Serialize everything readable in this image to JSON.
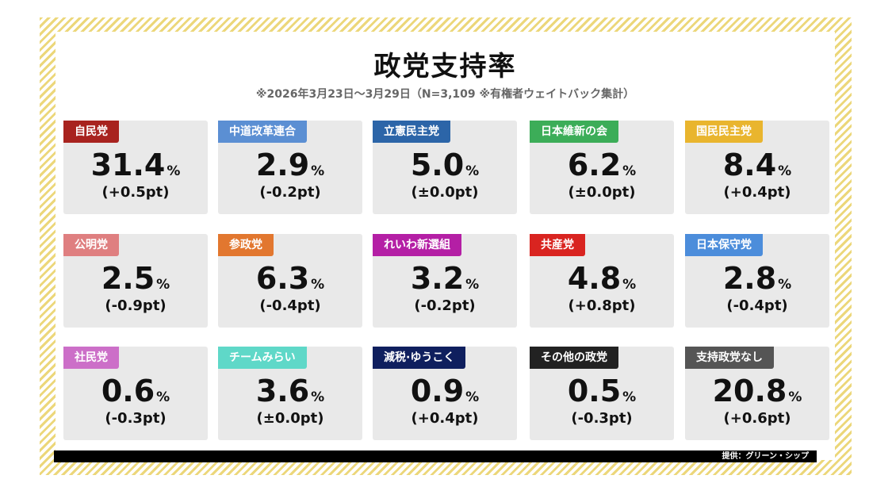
{
  "title": "政党支持率",
  "subtitle": "※2026年3月23日～3月29日（N=3,109 ※有権者ウェイトバック集計）",
  "unit": "%",
  "parties": [
    {
      "name": "自民党",
      "value": "31.4",
      "change": "(+0.5pt)",
      "color": "#a8231f"
    },
    {
      "name": "中道改革連合",
      "value": "2.9",
      "change": "(-0.2pt)",
      "color": "#5b8fd3"
    },
    {
      "name": "立憲民主党",
      "value": "5.0",
      "change": "(±0.0pt)",
      "color": "#2c65a8"
    },
    {
      "name": "日本維新の会",
      "value": "6.2",
      "change": "(±0.0pt)",
      "color": "#3cad58"
    },
    {
      "name": "国民民主党",
      "value": "8.4",
      "change": "(+0.4pt)",
      "color": "#e9b52e"
    },
    {
      "name": "公明党",
      "value": "2.5",
      "change": "(-0.9pt)",
      "color": "#df7f80"
    },
    {
      "name": "参政党",
      "value": "6.3",
      "change": "(-0.4pt)",
      "color": "#e2772f"
    },
    {
      "name": "れいわ新選組",
      "value": "3.2",
      "change": "(-0.2pt)",
      "color": "#b41fa5"
    },
    {
      "name": "共産党",
      "value": "4.8",
      "change": "(+0.8pt)",
      "color": "#d92420"
    },
    {
      "name": "日本保守党",
      "value": "2.8",
      "change": "(-0.4pt)",
      "color": "#4c8ddb"
    },
    {
      "name": "社民党",
      "value": "0.6",
      "change": "(-0.3pt)",
      "color": "#cc6fc8"
    },
    {
      "name": "チームみらい",
      "value": "3.6",
      "change": "(±0.0pt)",
      "color": "#5fd8c8"
    },
    {
      "name": "減税·ゆうこく",
      "value": "0.9",
      "change": "(+0.4pt)",
      "color": "#0f1f5e"
    },
    {
      "name": "その他の政党",
      "value": "0.5",
      "change": "(-0.3pt)",
      "color": "#222222"
    },
    {
      "name": "支持政党なし",
      "value": "20.8",
      "change": "(+0.6pt)",
      "color": "#555555"
    }
  ],
  "credit": "提供：グリーン・シップ"
}
